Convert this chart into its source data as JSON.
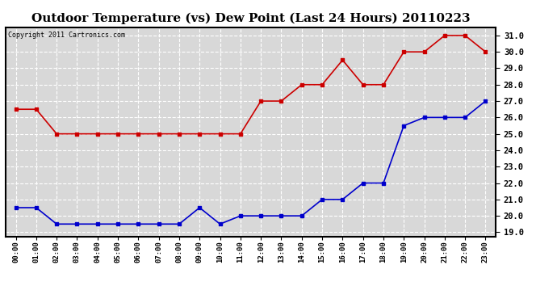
{
  "title": "Outdoor Temperature (vs) Dew Point (Last 24 Hours) 20110223",
  "copyright_text": "Copyright 2011 Cartronics.com",
  "hours": [
    "00:00",
    "01:00",
    "02:00",
    "03:00",
    "04:00",
    "05:00",
    "06:00",
    "07:00",
    "08:00",
    "09:00",
    "10:00",
    "11:00",
    "12:00",
    "13:00",
    "14:00",
    "15:00",
    "16:00",
    "17:00",
    "18:00",
    "19:00",
    "20:00",
    "21:00",
    "22:00",
    "23:00"
  ],
  "temp": [
    26.5,
    26.5,
    25.0,
    25.0,
    25.0,
    25.0,
    25.0,
    25.0,
    25.0,
    25.0,
    25.0,
    25.0,
    27.0,
    27.0,
    28.0,
    28.0,
    29.5,
    28.0,
    28.0,
    30.0,
    30.0,
    31.0,
    31.0,
    30.0
  ],
  "dew": [
    20.5,
    20.5,
    19.5,
    19.5,
    19.5,
    19.5,
    19.5,
    19.5,
    19.5,
    20.5,
    19.5,
    20.0,
    20.0,
    20.0,
    20.0,
    21.0,
    21.0,
    22.0,
    22.0,
    25.5,
    26.0,
    26.0,
    26.0,
    27.0
  ],
  "temp_color": "#cc0000",
  "dew_color": "#0000cc",
  "bg_color": "#ffffff",
  "plot_bg_color": "#d8d8d8",
  "grid_color": "#ffffff",
  "ylim": [
    18.75,
    31.5
  ],
  "yticks": [
    19.0,
    20.0,
    21.0,
    22.0,
    23.0,
    24.0,
    25.0,
    26.0,
    27.0,
    28.0,
    29.0,
    30.0,
    31.0
  ],
  "marker": "s",
  "marker_size": 3,
  "line_width": 1.2
}
